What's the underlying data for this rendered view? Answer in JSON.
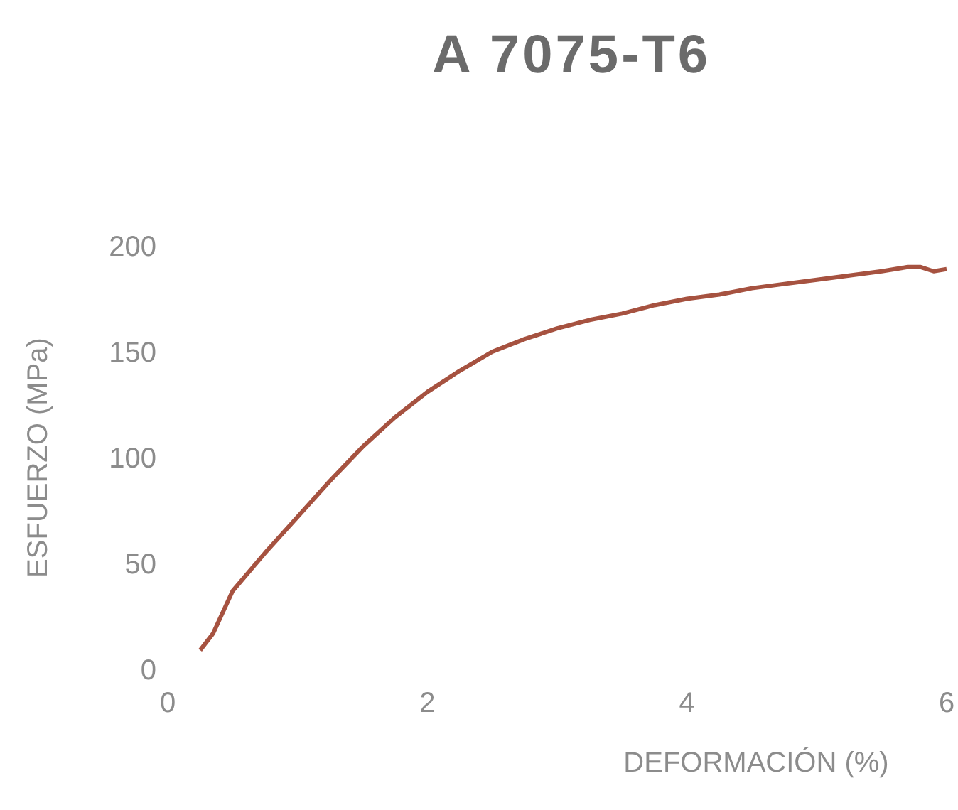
{
  "chart_data": {
    "type": "line",
    "title": "A 7075-T6",
    "xlabel": "DEFORMACIÓN (%)",
    "ylabel": "ESFUERZO (MPa)",
    "x": [
      0.25,
      0.35,
      0.5,
      0.75,
      1,
      1.25,
      1.5,
      1.75,
      2,
      2.25,
      2.5,
      2.75,
      3,
      3.25,
      3.5,
      3.75,
      4,
      4.25,
      4.5,
      4.75,
      5,
      5.25,
      5.5,
      5.7,
      5.8,
      5.9,
      6
    ],
    "series": [
      {
        "color": "#a65240",
        "values": [
          9,
          17,
          37,
          55,
          72,
          89,
          105,
          119,
          131,
          141,
          150,
          156,
          161,
          165,
          168,
          172,
          175,
          177,
          180,
          182,
          184,
          186,
          188,
          190,
          190,
          188,
          189
        ]
      }
    ],
    "xlim": [
      0,
      6
    ],
    "xticks": [
      0,
      2,
      4,
      6
    ],
    "ylim": [
      0,
      200
    ],
    "yticks": [
      0,
      50,
      100,
      150,
      200
    ],
    "grid": false,
    "marker": "none",
    "line_style": "solid"
  }
}
